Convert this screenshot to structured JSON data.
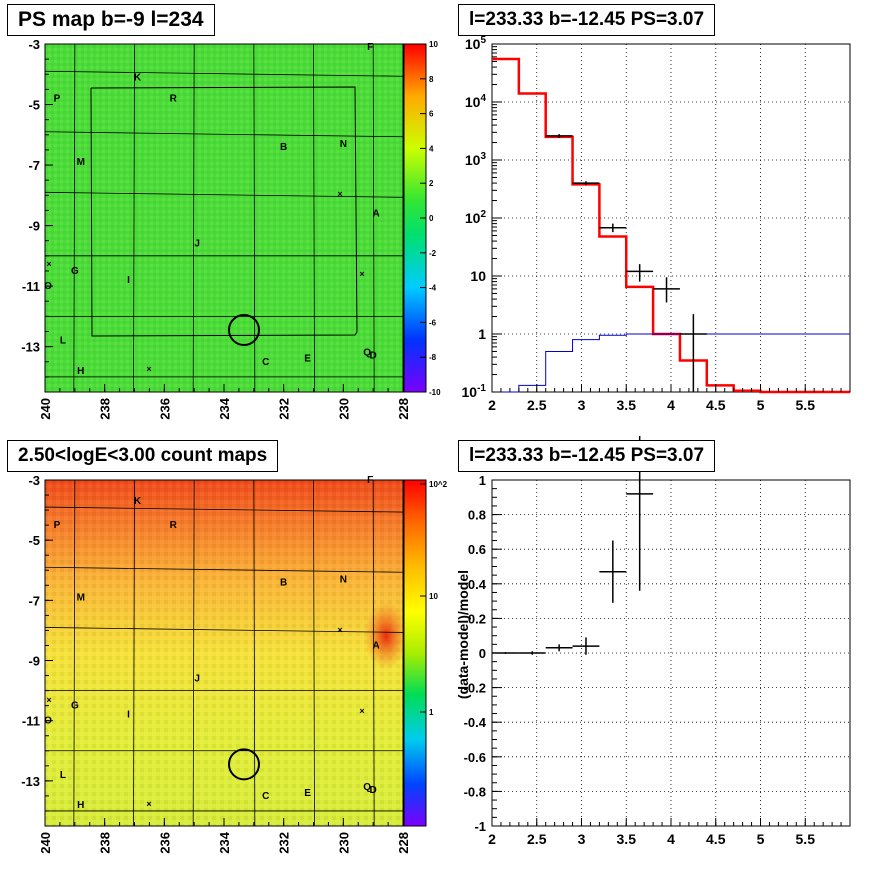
{
  "panels": {
    "tl_title": "PS map b=-9 l=234",
    "tr_title": "l=233.33 b=-12.45 PS=3.07",
    "bl_title": "2.50<logE<3.00 count maps",
    "br_title": "l=233.33 b=-12.45 PS=3.07"
  },
  "chart_data": [
    {
      "type": "heatmap",
      "title": "PS map b=-9 l=234",
      "x_ticks": [
        "240",
        "238",
        "236",
        "234",
        "232",
        "230",
        "228"
      ],
      "y_ticks": [
        "-3",
        "-5",
        "-7",
        "-9",
        "-11",
        "-13"
      ],
      "xlim": [
        240,
        228
      ],
      "ylim": [
        -14.5,
        -3
      ],
      "colorbar": {
        "ticks": [
          "10",
          "8",
          "6",
          "4",
          "2",
          "0",
          "-2",
          "-4",
          "-6",
          "-8",
          "-10"
        ],
        "range": [
          -10,
          10
        ]
      },
      "source_labels": [
        {
          "name": "K",
          "l": 236.9,
          "b": -4.2
        },
        {
          "name": "F",
          "l": 229.1,
          "b": -3.2
        },
        {
          "name": "P",
          "l": 239.6,
          "b": -4.9
        },
        {
          "name": "R",
          "l": 235.7,
          "b": -4.9
        },
        {
          "name": "B",
          "l": 232.0,
          "b": -6.5
        },
        {
          "name": "N",
          "l": 230.0,
          "b": -6.4
        },
        {
          "name": "M",
          "l": 238.8,
          "b": -7.0
        },
        {
          "name": "A",
          "l": 228.9,
          "b": -8.7
        },
        {
          "name": "J",
          "l": 234.9,
          "b": -9.7
        },
        {
          "name": "G",
          "l": 239.0,
          "b": -10.6
        },
        {
          "name": "I",
          "l": 237.2,
          "b": -10.9
        },
        {
          "name": "O",
          "l": 239.9,
          "b": -11.1
        },
        {
          "name": "L",
          "l": 239.4,
          "b": -12.9
        },
        {
          "name": "H",
          "l": 238.8,
          "b": -13.9
        },
        {
          "name": "C",
          "l": 232.6,
          "b": -13.6
        },
        {
          "name": "E",
          "l": 231.2,
          "b": -13.5
        },
        {
          "name": "Q",
          "l": 229.2,
          "b": -13.3
        },
        {
          "name": "D",
          "l": 229.0,
          "b": -13.4
        }
      ],
      "circle": {
        "l": 233.33,
        "b": -12.45
      }
    },
    {
      "type": "line",
      "title": "l=233.33 b=-12.45 PS=3.07",
      "xlim": [
        2,
        6
      ],
      "ylim": [
        0.1,
        100000
      ],
      "y_scale": "log",
      "x_ticks": [
        "2",
        "2.5",
        "3",
        "3.5",
        "4",
        "4.5",
        "5",
        "5.5"
      ],
      "y_ticks": [
        "10^-1",
        "1",
        "10",
        "10^2",
        "10^3",
        "10^4",
        "10^5"
      ],
      "series": [
        {
          "color": "#ff0000",
          "x": [
            2.0,
            2.3,
            2.6,
            2.9,
            3.2,
            3.5,
            3.8,
            4.1,
            4.4,
            4.7,
            5.0,
            6.0
          ],
          "y": [
            55000,
            14000,
            2500,
            380,
            48,
            6.5,
            1.0,
            0.35,
            0.13,
            0.105,
            0.1,
            0.1
          ]
        },
        {
          "color": "#0000cc",
          "x": [
            2.0,
            2.3,
            2.6,
            2.9,
            3.2,
            3.5,
            3.8,
            4.1,
            4.4,
            6.0
          ],
          "y": [
            0.1,
            0.13,
            0.5,
            0.8,
            0.95,
            1.0,
            1.0,
            1.0,
            1.0,
            1.0
          ]
        }
      ],
      "data_points": [
        {
          "x": 2.75,
          "xerr": 0.15,
          "y": 2600,
          "ylo": 2400,
          "yhi": 2800
        },
        {
          "x": 3.05,
          "xerr": 0.15,
          "y": 400,
          "ylo": 370,
          "yhi": 430
        },
        {
          "x": 3.35,
          "xerr": 0.15,
          "y": 68,
          "ylo": 57,
          "yhi": 80
        },
        {
          "x": 3.65,
          "xerr": 0.15,
          "y": 12,
          "ylo": 8,
          "yhi": 16
        },
        {
          "x": 3.95,
          "xerr": 0.15,
          "y": 6,
          "ylo": 3.5,
          "yhi": 9.5
        },
        {
          "x": 4.25,
          "xerr": 0.15,
          "y": 1.0,
          "ylo": 0.1,
          "yhi": 2.2
        }
      ]
    },
    {
      "type": "heatmap",
      "title": "2.50<logE<3.00 count maps",
      "x_ticks": [
        "240",
        "238",
        "236",
        "234",
        "232",
        "230",
        "228"
      ],
      "y_ticks": [
        "-3",
        "-5",
        "-7",
        "-9",
        "-11",
        "-13"
      ],
      "xlim": [
        240,
        228
      ],
      "ylim": [
        -14.5,
        -3
      ],
      "colorbar": {
        "ticks": [
          "10^2",
          "10",
          "1"
        ],
        "scale": "log"
      },
      "source_labels": [
        {
          "name": "K",
          "l": 236.9,
          "b": -3.8
        },
        {
          "name": "F",
          "l": 229.1,
          "b": -3.1
        },
        {
          "name": "P",
          "l": 239.6,
          "b": -4.6
        },
        {
          "name": "R",
          "l": 235.7,
          "b": -4.6
        },
        {
          "name": "B",
          "l": 232.0,
          "b": -6.5
        },
        {
          "name": "N",
          "l": 230.0,
          "b": -6.4
        },
        {
          "name": "M",
          "l": 238.8,
          "b": -7.0
        },
        {
          "name": "A",
          "l": 228.9,
          "b": -8.6
        },
        {
          "name": "J",
          "l": 234.9,
          "b": -9.7
        },
        {
          "name": "G",
          "l": 239.0,
          "b": -10.6
        },
        {
          "name": "I",
          "l": 237.2,
          "b": -10.9
        },
        {
          "name": "O",
          "l": 239.9,
          "b": -11.1
        },
        {
          "name": "L",
          "l": 239.4,
          "b": -12.9
        },
        {
          "name": "H",
          "l": 238.8,
          "b": -13.9
        },
        {
          "name": "C",
          "l": 232.6,
          "b": -13.6
        },
        {
          "name": "E",
          "l": 231.2,
          "b": -13.5
        },
        {
          "name": "Q",
          "l": 229.2,
          "b": -13.3
        },
        {
          "name": "D",
          "l": 229.0,
          "b": -13.4
        }
      ],
      "circle": {
        "l": 233.33,
        "b": -12.45
      }
    },
    {
      "type": "scatter",
      "title": "l=233.33 b=-12.45 PS=3.07",
      "ylabel": "(data-model)/model",
      "xlim": [
        2,
        6
      ],
      "ylim": [
        -1,
        1
      ],
      "x_ticks": [
        "2",
        "2.5",
        "3",
        "3.5",
        "4",
        "4.5",
        "5",
        "5.5"
      ],
      "y_ticks": [
        "-1",
        "-0.8",
        "-0.6",
        "-0.4",
        "-0.2",
        "0",
        "0.2",
        "0.4",
        "0.6",
        "0.8",
        "1"
      ],
      "grid": true,
      "data_points": [
        {
          "x": 2.15,
          "xerr": 0.15,
          "y": 0.0,
          "yerr": 0.005
        },
        {
          "x": 2.45,
          "xerr": 0.15,
          "y": 0.0,
          "yerr": 0.01
        },
        {
          "x": 2.75,
          "xerr": 0.15,
          "y": 0.03,
          "yerr": 0.02
        },
        {
          "x": 3.05,
          "xerr": 0.15,
          "y": 0.04,
          "yerr": 0.05
        },
        {
          "x": 3.35,
          "xerr": 0.15,
          "y": 0.47,
          "yerr": 0.18
        },
        {
          "x": 3.65,
          "xerr": 0.15,
          "y": 0.92,
          "yerr": 0.56
        }
      ]
    }
  ]
}
